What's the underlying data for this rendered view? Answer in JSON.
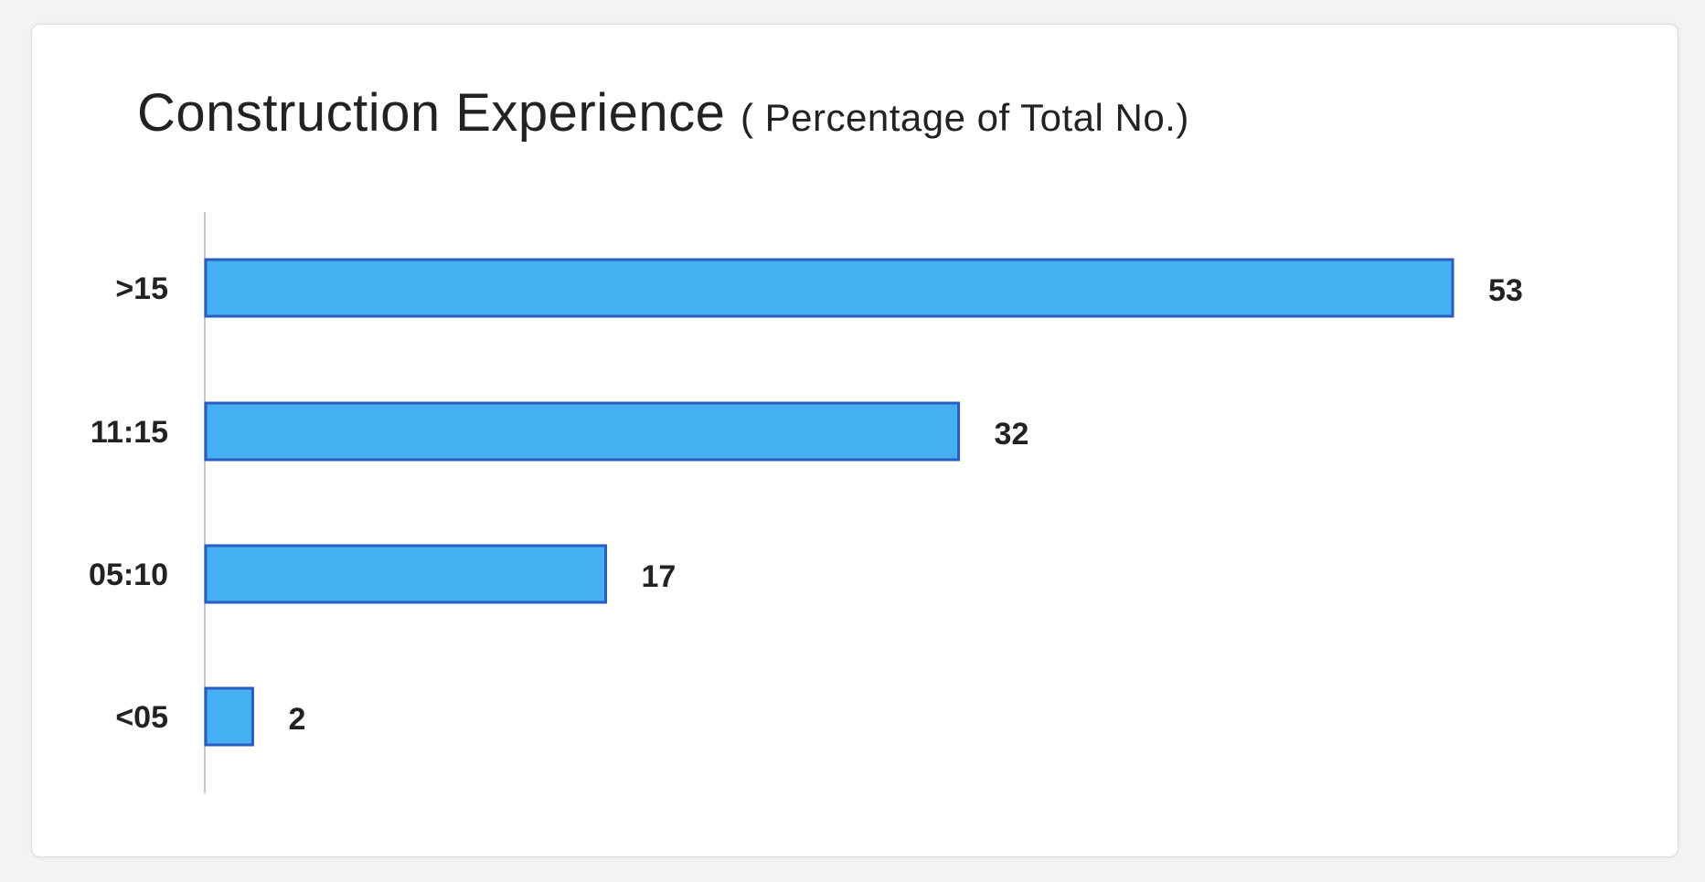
{
  "chart_data": {
    "type": "bar",
    "orientation": "horizontal",
    "title": "Construction Experience",
    "title_suffix": "( Percentage of Total No.)",
    "categories": [
      ">15",
      "11:15",
      "05:10",
      "<05"
    ],
    "values": [
      53,
      32,
      17,
      2
    ],
    "xlim": [
      0,
      53
    ],
    "grid": false,
    "bar_color": "#45b0f0",
    "bar_edge_color": "#2a5cc6"
  }
}
